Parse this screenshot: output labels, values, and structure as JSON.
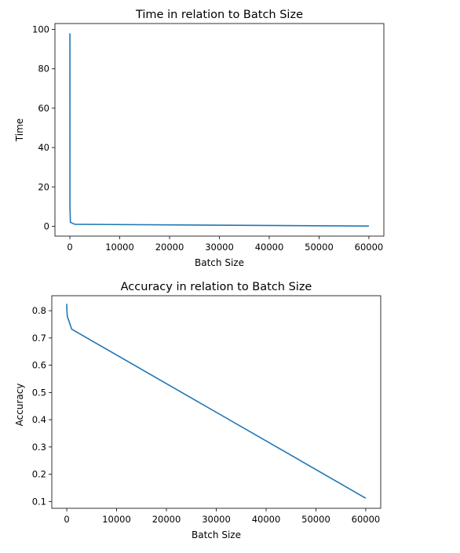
{
  "chart_data": [
    {
      "type": "line",
      "title": "Time in relation to Batch Size",
      "xlabel": "Batch Size",
      "ylabel": "Time",
      "xlim": [
        -3000,
        63000
      ],
      "ylim": [
        -5,
        103
      ],
      "xticks": [
        0,
        10000,
        20000,
        30000,
        40000,
        50000,
        60000
      ],
      "yticks": [
        0,
        20,
        40,
        60,
        80,
        100
      ],
      "grid": false,
      "color": "#1f77b4",
      "series": [
        {
          "x": [
            1,
            10,
            100,
            1000,
            60000
          ],
          "y": [
            98,
            10,
            2,
            1,
            0.1
          ]
        }
      ]
    },
    {
      "type": "line",
      "title": "Accuracy in relation to Batch Size",
      "xlabel": "Batch Size",
      "ylabel": "Accuracy",
      "xlim": [
        -3000,
        63000
      ],
      "ylim": [
        0.075,
        0.855
      ],
      "xticks": [
        0,
        10000,
        20000,
        30000,
        40000,
        50000,
        60000
      ],
      "yticks": [
        0.1,
        0.2,
        0.3,
        0.4,
        0.5,
        0.6,
        0.7,
        0.8
      ],
      "grid": false,
      "color": "#1f77b4",
      "series": [
        {
          "x": [
            1,
            10,
            100,
            1000,
            60000
          ],
          "y": [
            0.825,
            0.81,
            0.78,
            0.732,
            0.112
          ]
        }
      ]
    }
  ]
}
